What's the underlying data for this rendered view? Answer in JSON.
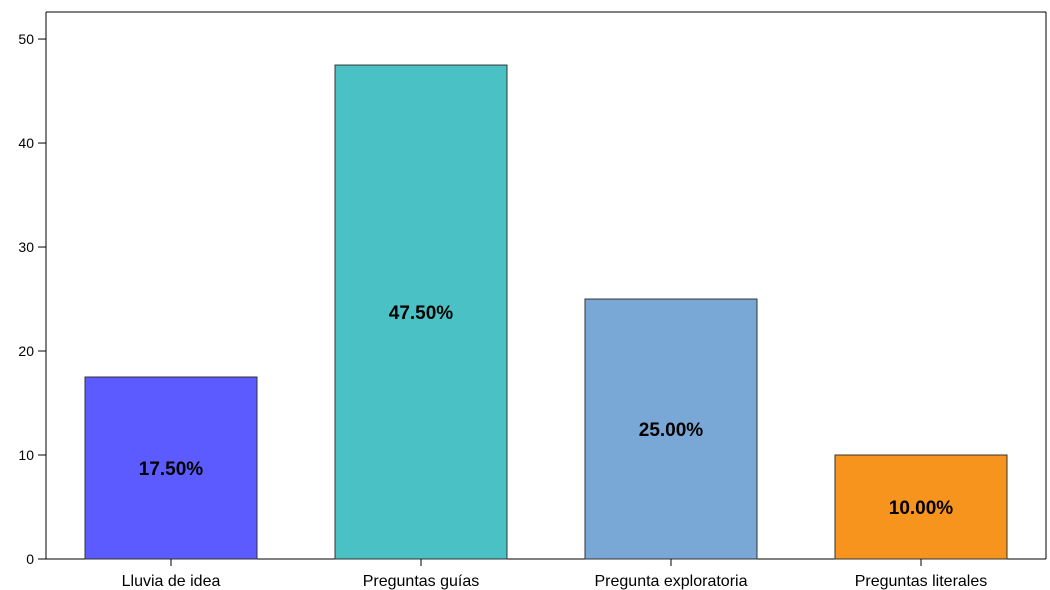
{
  "chart_data": {
    "type": "bar",
    "categories": [
      "Lluvia de idea",
      "Preguntas guías",
      "Pregunta exploratoria",
      "Preguntas literales"
    ],
    "values": [
      17.5,
      47.5,
      25.0,
      10.0
    ],
    "data_labels": [
      "17.50%",
      "47.50%",
      "25.00%",
      "10.00%"
    ],
    "colors": [
      "#5b5bff",
      "#4ac2c5",
      "#7aa8d6",
      "#f7941d"
    ],
    "title": "",
    "xlabel": "",
    "ylabel": "",
    "ylim": [
      0,
      50
    ],
    "yticks": [
      0,
      10,
      20,
      30,
      40,
      50
    ],
    "ytick_labels": [
      "0",
      "10",
      "20",
      "30",
      "40",
      "50"
    ],
    "grid": false,
    "legend": "none"
  }
}
